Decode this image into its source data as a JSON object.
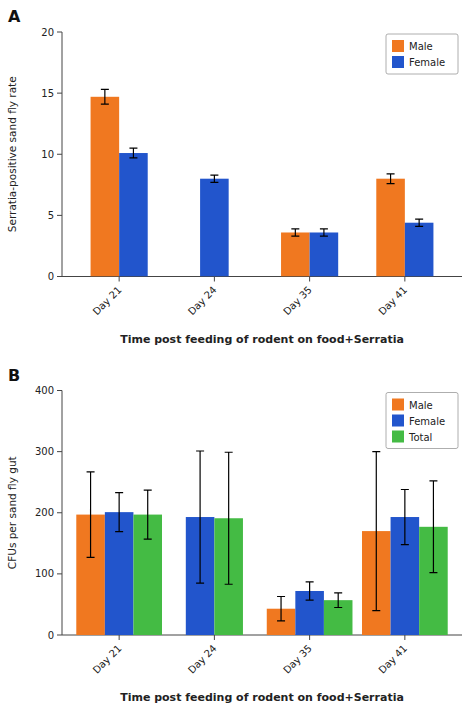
{
  "chart_data": [
    {
      "type": "bar",
      "title": "A",
      "xlabel": "Time post feeding of rodent on food+Serratia",
      "ylabel": "Serratia-positive sand fly rate",
      "categories": [
        "Day 21",
        "Day 24",
        "Day 35",
        "Day 41"
      ],
      "series": [
        {
          "name": "Male",
          "color": "#F07820",
          "values": [
            14.7,
            null,
            3.6,
            8.0
          ],
          "errors": [
            0.6,
            null,
            0.3,
            0.4
          ]
        },
        {
          "name": "Female",
          "color": "#2255CC",
          "values": [
            10.1,
            8.0,
            3.6,
            4.4
          ],
          "errors": [
            0.4,
            0.3,
            0.3,
            0.3
          ]
        }
      ],
      "ylim": [
        0,
        20
      ],
      "yticks": [
        0,
        5,
        10,
        15,
        20
      ],
      "legend": "upper right"
    },
    {
      "type": "bar",
      "title": "B",
      "xlabel": "Time post feeding of rodent on food+Serratia",
      "ylabel": "CFUs per sand fly gut",
      "categories": [
        "Day 21",
        "Day 24",
        "Day 35",
        "Day 41"
      ],
      "series": [
        {
          "name": "Male",
          "color": "#F07820",
          "values": [
            197,
            null,
            43,
            170
          ],
          "errors": [
            70,
            null,
            20,
            130
          ]
        },
        {
          "name": "Female",
          "color": "#2255CC",
          "values": [
            201,
            193,
            72,
            193
          ],
          "errors": [
            32,
            108,
            15,
            45
          ]
        },
        {
          "name": "Total",
          "color": "#44BB44",
          "values": [
            197,
            191,
            57,
            177
          ],
          "errors": [
            40,
            108,
            12,
            75
          ]
        }
      ],
      "ylim": [
        0,
        400
      ],
      "yticks": [
        0,
        100,
        200,
        300,
        400
      ],
      "legend": "upper right"
    }
  ]
}
